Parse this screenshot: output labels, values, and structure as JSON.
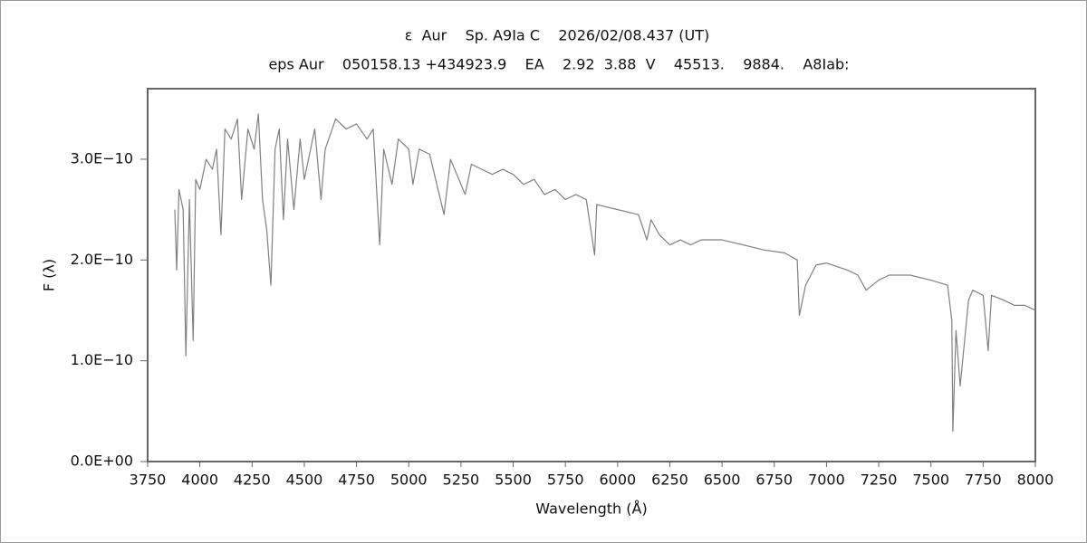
{
  "chart_data": {
    "type": "line",
    "title": "ε  Aur    Sp. A9Ia C    2026/02/08.437 (UT)",
    "subtitle": "eps Aur    050158.13 +434923.9    EA    2.92  3.88  V    45513.    9884.    A8Iab:",
    "x_label": "Wavelength (Å)",
    "y_label": "F (λ)",
    "color": "#808080",
    "xlim": [
      3750,
      8000
    ],
    "ylim": [
      0,
      3.7e-10
    ],
    "xticks": [
      3750,
      4000,
      4250,
      4500,
      4750,
      5000,
      5250,
      5500,
      5750,
      6000,
      6250,
      6500,
      6750,
      7000,
      7250,
      7500,
      7750,
      8000
    ],
    "yticks": [
      {
        "value": 0,
        "label": "0.0E+00"
      },
      {
        "value": 1e-10,
        "label": "1.0E−10"
      },
      {
        "value": 2e-10,
        "label": "2.0E−10"
      },
      {
        "value": 3e-10,
        "label": "3.0E−10"
      }
    ],
    "grid": false,
    "x": [
      3880,
      3889,
      3900,
      3920,
      3933,
      3950,
      3968,
      3980,
      4000,
      4030,
      4060,
      4080,
      4101,
      4120,
      4150,
      4180,
      4200,
      4230,
      4260,
      4280,
      4300,
      4320,
      4340,
      4360,
      4380,
      4400,
      4420,
      4450,
      4480,
      4500,
      4550,
      4580,
      4600,
      4650,
      4700,
      4750,
      4800,
      4830,
      4861,
      4880,
      4920,
      4950,
      5000,
      5020,
      5050,
      5100,
      5169,
      5200,
      5270,
      5300,
      5400,
      5450,
      5500,
      5550,
      5600,
      5650,
      5700,
      5750,
      5800,
      5850,
      5890,
      5900,
      6000,
      6100,
      6140,
      6160,
      6200,
      6250,
      6300,
      6350,
      6400,
      6500,
      6600,
      6700,
      6800,
      6860,
      6870,
      6900,
      6950,
      7000,
      7100,
      7150,
      7190,
      7250,
      7300,
      7400,
      7500,
      7580,
      7600,
      7605,
      7620,
      7640,
      7680,
      7700,
      7750,
      7774,
      7790,
      7850,
      7900,
      7950,
      8000
    ],
    "values": [
      2.5e-10,
      1.9e-10,
      2.7e-10,
      2.5e-10,
      1.05e-10,
      2.6e-10,
      1.2e-10,
      2.8e-10,
      2.7e-10,
      3e-10,
      2.9e-10,
      3.1e-10,
      2.25e-10,
      3.3e-10,
      3.2e-10,
      3.4e-10,
      2.6e-10,
      3.3e-10,
      3.1e-10,
      3.45e-10,
      2.6e-10,
      2.3e-10,
      1.75e-10,
      3.1e-10,
      3.3e-10,
      2.4e-10,
      3.2e-10,
      2.5e-10,
      3.2e-10,
      2.8e-10,
      3.3e-10,
      2.6e-10,
      3.1e-10,
      3.4e-10,
      3.3e-10,
      3.35e-10,
      3.2e-10,
      3.3e-10,
      2.15e-10,
      3.1e-10,
      2.75e-10,
      3.2e-10,
      3.1e-10,
      2.75e-10,
      3.1e-10,
      3.05e-10,
      2.45e-10,
      3e-10,
      2.65e-10,
      2.95e-10,
      2.85e-10,
      2.9e-10,
      2.85e-10,
      2.75e-10,
      2.8e-10,
      2.65e-10,
      2.7e-10,
      2.6e-10,
      2.65e-10,
      2.6e-10,
      2.05e-10,
      2.55e-10,
      2.5e-10,
      2.45e-10,
      2.2e-10,
      2.4e-10,
      2.25e-10,
      2.15e-10,
      2.2e-10,
      2.15e-10,
      2.2e-10,
      2.2e-10,
      2.15e-10,
      2.1e-10,
      2.07e-10,
      2e-10,
      1.45e-10,
      1.75e-10,
      1.95e-10,
      1.97e-10,
      1.9e-10,
      1.85e-10,
      1.7e-10,
      1.8e-10,
      1.85e-10,
      1.85e-10,
      1.8e-10,
      1.75e-10,
      1.4e-10,
      3e-11,
      1.3e-10,
      7.5e-11,
      1.6e-10,
      1.7e-10,
      1.65e-10,
      1.1e-10,
      1.65e-10,
      1.6e-10,
      1.55e-10,
      1.55e-10,
      1.5e-10
    ]
  }
}
